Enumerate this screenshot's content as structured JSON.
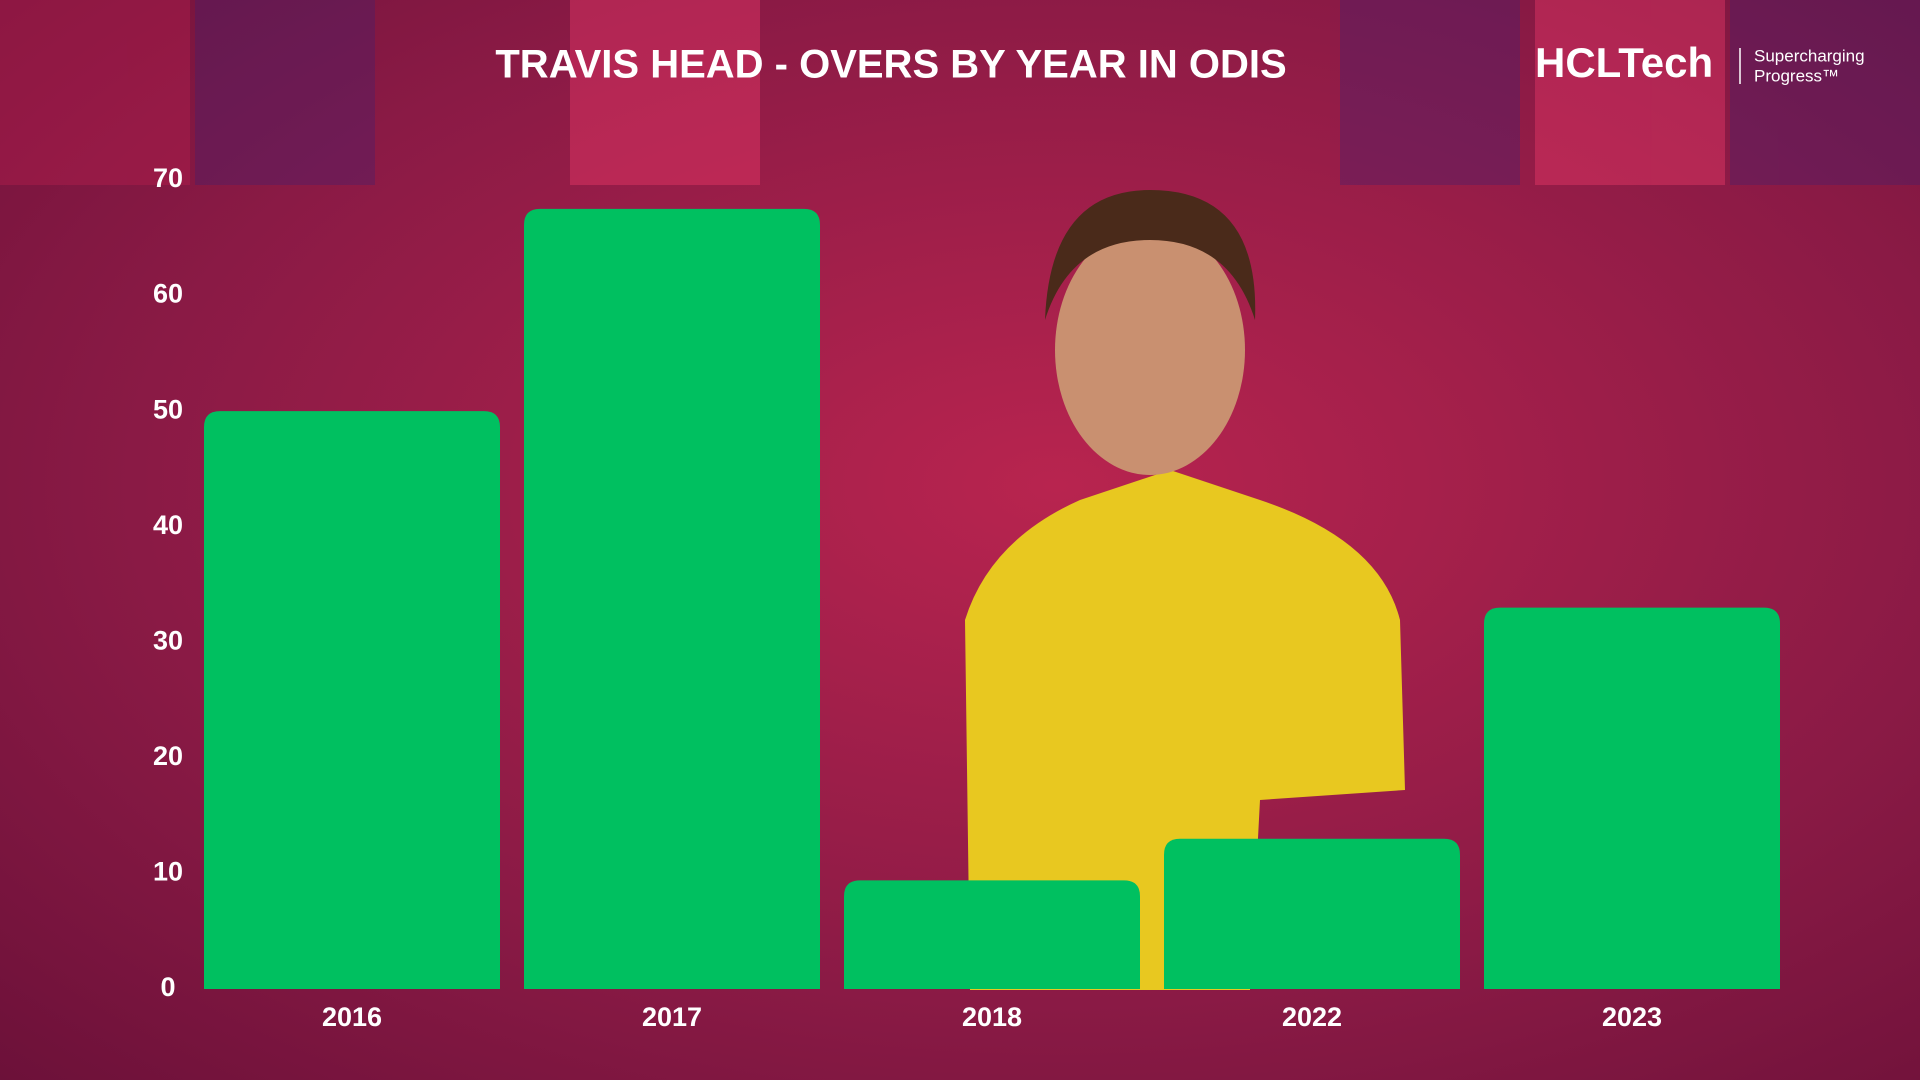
{
  "chart_data": {
    "type": "bar",
    "title": "TRAVIS HEAD - OVERS BY YEAR IN ODIS",
    "categories": [
      "2016",
      "2017",
      "2018",
      "2022",
      "2023"
    ],
    "values": [
      50,
      67.5,
      9.4,
      13,
      33
    ],
    "color": "#00c060",
    "ylim": [
      0,
      70
    ],
    "yticks": [
      0,
      10,
      20,
      30,
      40,
      50,
      60,
      70
    ],
    "grid": false
  },
  "logo": {
    "brand": "HCLTech",
    "tagline_1": "Supercharging",
    "tagline_2": "Progress™"
  }
}
